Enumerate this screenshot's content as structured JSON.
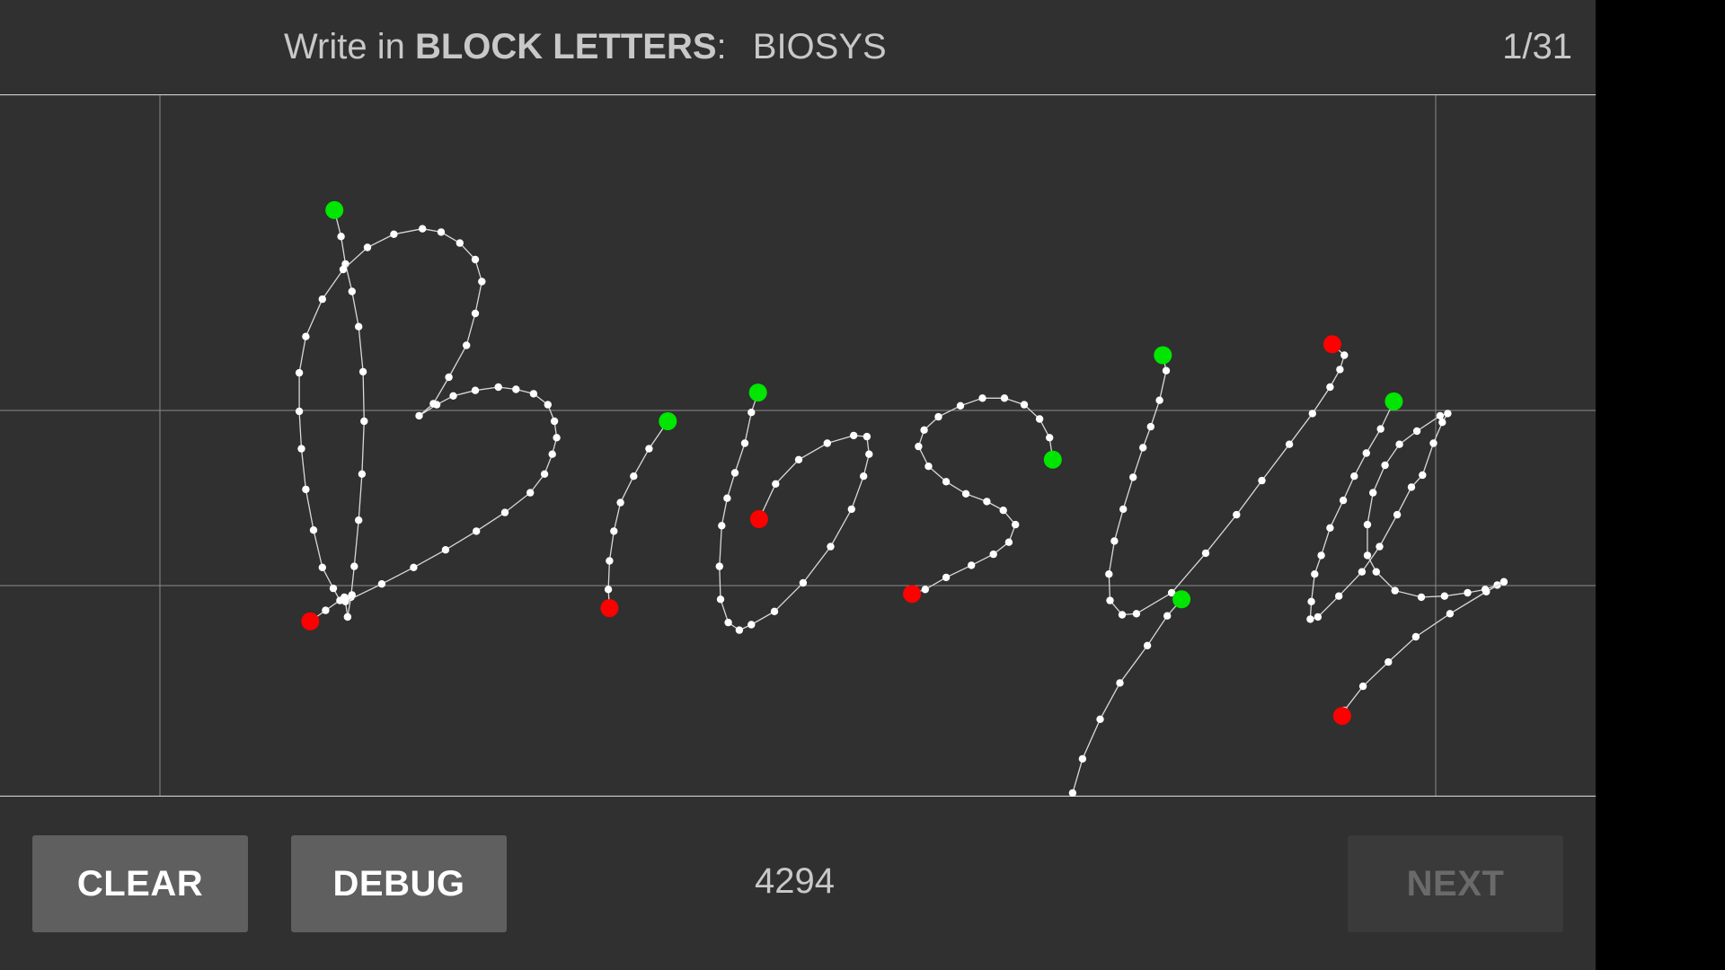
{
  "header": {
    "prompt_prefix": "Write in",
    "prompt_emphasis": "BLOCK LETTERS",
    "prompt_colon": ":",
    "target_word": "BIOSYS",
    "progress": "1/31"
  },
  "footer": {
    "clear_label": "CLEAR",
    "debug_label": "DEBUG",
    "point_count": "4294",
    "next_label": "NEXT",
    "next_enabled": false
  },
  "colors": {
    "background": "#303030",
    "stroke": "#ffffff",
    "stroke_start": "#00e600",
    "stroke_end": "#ff0000",
    "guide_line": "#8a8a8a"
  }
}
